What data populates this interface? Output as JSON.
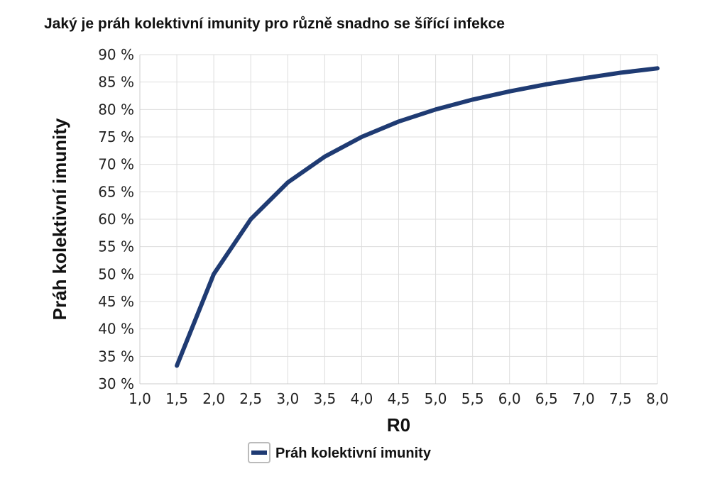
{
  "chart_data": {
    "type": "line",
    "title": "Jaký je práh kolektivní imunity pro různě snadno se šířící infekce",
    "xlabel": "R0",
    "ylabel": "Práh kolektivní imunity",
    "xlim": [
      1.0,
      8.0
    ],
    "ylim": [
      30,
      90
    ],
    "x_ticks": [
      "1,0",
      "1,5",
      "2,0",
      "2,5",
      "3,0",
      "3,5",
      "4,0",
      "4,5",
      "5,0",
      "5,5",
      "6,0",
      "6,5",
      "7,0",
      "7,5",
      "8,0"
    ],
    "y_ticks": [
      "30 %",
      "35 %",
      "40 %",
      "45 %",
      "50 %",
      "55 %",
      "60 %",
      "65 %",
      "70 %",
      "75 %",
      "80 %",
      "85 %",
      "90 %"
    ],
    "grid": true,
    "legend_position": "bottom",
    "series": [
      {
        "name": "Práh kolektivní imunity",
        "color": "#1f3b73",
        "x": [
          1.5,
          2.0,
          2.5,
          3.0,
          3.5,
          4.0,
          4.5,
          5.0,
          5.5,
          6.0,
          6.5,
          7.0,
          7.5,
          8.0
        ],
        "y": [
          33.3,
          50.0,
          60.0,
          66.7,
          71.4,
          75.0,
          77.8,
          80.0,
          81.8,
          83.3,
          84.6,
          85.7,
          86.7,
          87.5
        ]
      }
    ]
  }
}
